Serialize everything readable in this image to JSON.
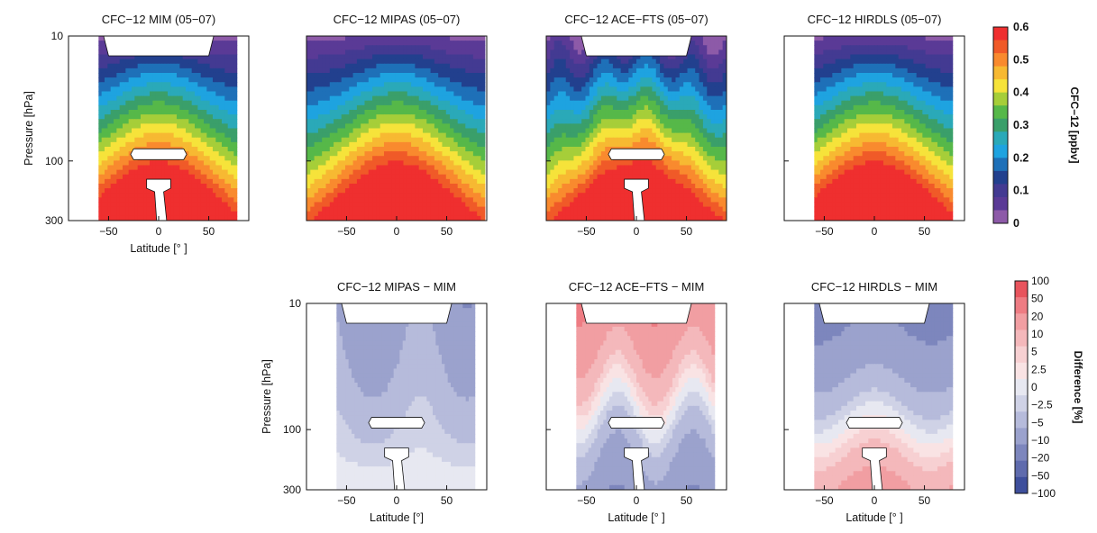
{
  "figure": {
    "top_colorbar": {
      "label": "CFC−12 [ppbv]",
      "ticks": [
        "0.6",
        "0.5",
        "0.4",
        "0.3",
        "0.2",
        "0.1",
        "0"
      ],
      "colors": [
        "#ef2f2f",
        "#f05a28",
        "#f98a2e",
        "#f7b932",
        "#f6e33a",
        "#a6ce39",
        "#56b849",
        "#3a9f6a",
        "#2aa9b8",
        "#1ea3e0",
        "#1e70b8",
        "#22408e",
        "#433a92",
        "#5a3a96",
        "#8d5aa8"
      ]
    },
    "bottom_colorbar": {
      "label": "Difference [%]",
      "ticks": [
        "100",
        "50",
        "20",
        "10",
        "5",
        "2.5",
        "0",
        "−2.5",
        "−5",
        "−10",
        "−20",
        "−50",
        "−100"
      ],
      "colors": [
        "#e8545d",
        "#ee7c83",
        "#f19ea2",
        "#f4b8bb",
        "#f7d0d2",
        "#f9e3e4",
        "#e7e8f1",
        "#cfd2e6",
        "#b6bbdb",
        "#9ba2cd",
        "#7d86bd",
        "#5f6bad",
        "#3e4f9c"
      ]
    },
    "ylabel": "Pressure [hPa]",
    "xlabel": "Latitude [°]"
  },
  "chart_data": [
    {
      "type": "heatmap",
      "title": "CFC−12 MIM (05−07)",
      "xlabel": "Latitude [°]",
      "ylabel": "Pressure [hPa]",
      "x_ticks": [
        "−50",
        "0",
        "50"
      ],
      "y_ticks": [
        "10",
        "100",
        "300"
      ],
      "xlim": [
        -90,
        90
      ],
      "ylim": [
        300,
        10
      ],
      "y_scale": "log",
      "colorbar_label": "CFC−12 [ppbv]",
      "range": [
        0,
        0.6
      ],
      "data_lat_extent": [
        -60,
        78
      ]
    },
    {
      "type": "heatmap",
      "title": "CFC−12 MIPAS (05−07)",
      "x_ticks": [
        "−50",
        "0",
        "50"
      ],
      "xlim": [
        -90,
        90
      ],
      "ylim": [
        300,
        10
      ],
      "y_scale": "log",
      "colorbar_label": "CFC−12 [ppbv]",
      "range": [
        0,
        0.6
      ],
      "data_lat_extent": [
        -90,
        88
      ]
    },
    {
      "type": "heatmap",
      "title": "CFC−12 ACE−FTS (05−07)",
      "x_ticks": [
        "−50",
        "0",
        "50"
      ],
      "xlim": [
        -90,
        90
      ],
      "ylim": [
        300,
        10
      ],
      "y_scale": "log",
      "colorbar_label": "CFC−12 [ppbv]",
      "range": [
        0,
        0.6
      ],
      "data_lat_extent": [
        -90,
        90
      ]
    },
    {
      "type": "heatmap",
      "title": "CFC−12 HIRDLS (05−07)",
      "x_ticks": [
        "−50",
        "0",
        "50"
      ],
      "xlim": [
        -90,
        90
      ],
      "ylim": [
        300,
        10
      ],
      "y_scale": "log",
      "colorbar_label": "CFC−12 [ppbv]",
      "range": [
        0,
        0.6
      ],
      "data_lat_extent": [
        -60,
        78
      ]
    },
    {
      "type": "heatmap",
      "title": "CFC−12 MIPAS − MIM",
      "xlabel": "Latitude [°]",
      "ylabel": "Pressure [hPa]",
      "x_ticks": [
        "−50",
        "0",
        "50"
      ],
      "y_ticks": [
        "10",
        "100",
        "300"
      ],
      "xlim": [
        -90,
        90
      ],
      "ylim": [
        300,
        10
      ],
      "y_scale": "log",
      "colorbar_label": "Difference [%]",
      "range": [
        -100,
        100
      ],
      "data_lat_extent": [
        -60,
        78
      ]
    },
    {
      "type": "heatmap",
      "title": "CFC−12 ACE−FTS − MIM",
      "xlabel": "Latitude [° ]",
      "x_ticks": [
        "−50",
        "0",
        "50"
      ],
      "xlim": [
        -90,
        90
      ],
      "ylim": [
        300,
        10
      ],
      "y_scale": "log",
      "colorbar_label": "Difference [%]",
      "range": [
        -100,
        100
      ],
      "data_lat_extent": [
        -60,
        78
      ]
    },
    {
      "type": "heatmap",
      "title": "CFC−12 HIRDLS − MIM",
      "xlabel": "Latitude [° ]",
      "x_ticks": [
        "−50",
        "0",
        "50"
      ],
      "xlim": [
        -90,
        90
      ],
      "ylim": [
        300,
        10
      ],
      "y_scale": "log",
      "colorbar_label": "Difference [%]",
      "range": [
        -100,
        100
      ],
      "data_lat_extent": [
        -60,
        78
      ]
    }
  ],
  "panels": [
    {
      "title": "CFC−12 MIM (05−07)",
      "xlabel": "Latitude [° ]",
      "ylabel": "Pressure [hPa]",
      "yticks": [
        "10",
        "100",
        "300"
      ],
      "xticks": [
        "−50",
        "0",
        "50"
      ],
      "kind": "abs",
      "extent": [
        -60,
        78
      ],
      "mask": true,
      "cover": "top"
    },
    {
      "title": "CFC−12 MIPAS (05−07)",
      "xticks": [
        "−50",
        "0",
        "50"
      ],
      "kind": "abs",
      "extent": [
        -90,
        88
      ],
      "mask": false
    },
    {
      "title": "CFC−12 ACE−FTS (05−07)",
      "xticks": [
        "−50",
        "0",
        "50"
      ],
      "kind": "abs",
      "extent": [
        -90,
        90
      ],
      "mask": true
    },
    {
      "title": "CFC−12 HIRDLS (05−07)",
      "xticks": [
        "−50",
        "0",
        "50"
      ],
      "kind": "abs",
      "extent": [
        -60,
        78
      ],
      "mask": false
    },
    {
      "title": "CFC−12 MIPAS − MIM",
      "xlabel": "Latitude [°]",
      "ylabel": "Pressure [hPa]",
      "yticks": [
        "10",
        "100",
        "300"
      ],
      "xticks": [
        "−50",
        "0",
        "50"
      ],
      "kind": "diff",
      "extent": [
        -60,
        78
      ],
      "mask": true
    },
    {
      "title": "CFC−12 ACE−FTS − MIM",
      "xlabel": "Latitude [° ]",
      "xticks": [
        "−50",
        "0",
        "50"
      ],
      "kind": "diff",
      "extent": [
        -60,
        78
      ],
      "mask": true
    },
    {
      "title": "CFC−12 HIRDLS − MIM",
      "xlabel": "Latitude [° ]",
      "xticks": [
        "−50",
        "0",
        "50"
      ],
      "kind": "diff",
      "extent": [
        -60,
        78
      ],
      "mask": true
    }
  ]
}
